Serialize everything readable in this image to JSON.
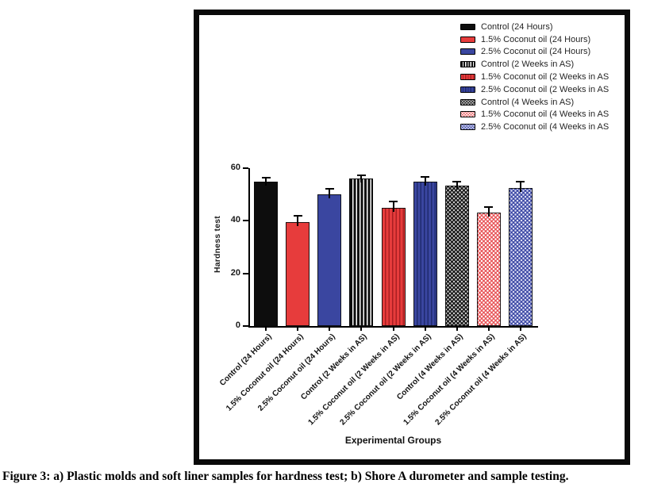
{
  "figure": {
    "caption": "Figure 3: a) Plastic molds and soft liner samples for hardness test; b) Shore A durometer and sample testing."
  },
  "chart_data": {
    "type": "bar",
    "title": "",
    "xlabel": "Experimental Groups",
    "ylabel": "Hardness test",
    "ylim": [
      0,
      60
    ],
    "yticks": [
      0,
      20,
      40,
      60
    ],
    "grid": false,
    "legend_position": "top-right",
    "categories": [
      "Control (24 Hours)",
      "1.5% Coconut oil (24 Hours)",
      "2.5% Coconut oil (24 Hours)",
      "Control (2 Weeks in AS)",
      "1.5% Coconut oil (2 Weeks in AS)",
      "2.5% Coconut oil (2 Weeks in AS)",
      "Control (4 Weeks in AS)",
      "1.5% Coconut oil (4 Weeks in AS)",
      "2.5% Coconut oil (4 Weeks in AS)"
    ],
    "values": [
      55,
      39.5,
      50,
      56,
      45,
      55,
      53.5,
      43,
      52.5
    ],
    "errors": [
      1,
      2,
      2,
      1,
      2,
      1.5,
      1,
      2,
      2
    ],
    "styles": [
      {
        "color": "#0d0d0d",
        "pattern": "solid",
        "pattern_color": "#0d0d0d"
      },
      {
        "color": "#e73c3c",
        "pattern": "solid",
        "pattern_color": "#e73c3c"
      },
      {
        "color": "#3a46a0",
        "pattern": "solid",
        "pattern_color": "#3a46a0"
      },
      {
        "color": "#0d0d0d",
        "pattern": "vstripes",
        "pattern_color": "#ffffff"
      },
      {
        "color": "#e73c3c",
        "pattern": "vstripes",
        "pattern_color": "#a81f22"
      },
      {
        "color": "#3a46a0",
        "pattern": "vstripes",
        "pattern_color": "#1f2a6e"
      },
      {
        "color": "#141414",
        "pattern": "dots",
        "pattern_color": "#c8c8c8"
      },
      {
        "color": "#e8575a",
        "pattern": "dots",
        "pattern_color": "#ffffff"
      },
      {
        "color": "#3f4ba6",
        "pattern": "dots",
        "pattern_color": "#dadbf2"
      }
    ],
    "legend_labels": [
      "Control (24 Hours)",
      "1.5% Coconut oil (24 Hours)",
      "2.5% Coconut oil (24 Hours)",
      "Control (2 Weeks in AS)",
      "1.5% Coconut oil (2 Weeks in AS",
      "2.5% Coconut oil (2 Weeks in AS",
      "Control (4 Weeks in AS)",
      "1.5% Coconut oil (4 Weeks in AS",
      "2.5% Coconut oil (4 Weeks in AS"
    ]
  }
}
